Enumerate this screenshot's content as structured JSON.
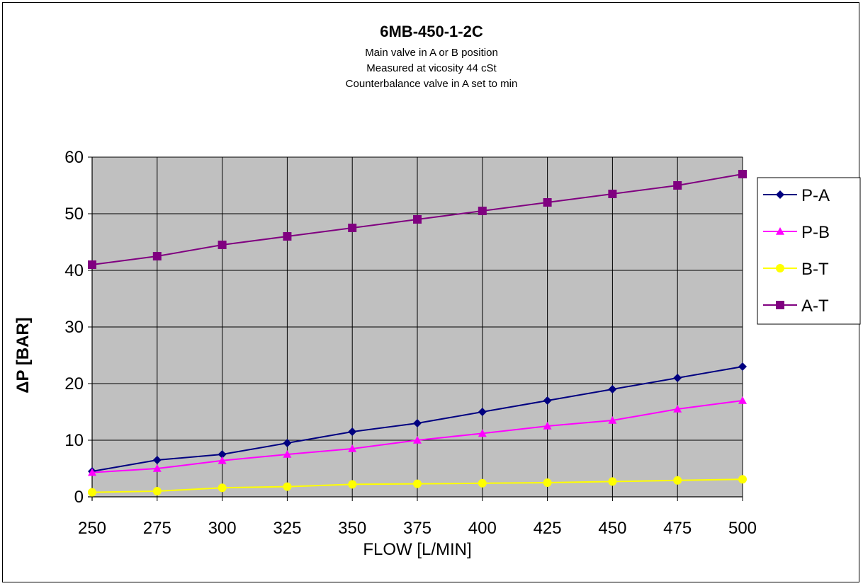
{
  "chart_data": {
    "type": "line",
    "title": "6MB-450-1-2C",
    "subtitle": [
      "Main valve in A or B position",
      "Measured at vicosity 44 cSt",
      "Counterbalance valve in A set to min"
    ],
    "xlabel": "FLOW   [L/MIN]",
    "ylabel": "ΔP [BAR]",
    "x": [
      250,
      275,
      300,
      325,
      350,
      375,
      400,
      425,
      450,
      475,
      500
    ],
    "ylim": [
      0,
      60
    ],
    "yticks": [
      0,
      10,
      20,
      30,
      40,
      50,
      60
    ],
    "grid": true,
    "legend_position": "right",
    "plot_background": "#c0c0c0",
    "series": [
      {
        "name": "P-A",
        "color": "#000080",
        "marker": "diamond",
        "values": [
          4.5,
          6.5,
          7.5,
          9.5,
          11.5,
          13,
          15,
          17,
          19,
          21,
          23
        ]
      },
      {
        "name": "P-B",
        "color": "#ff00ff",
        "marker": "triangle",
        "values": [
          4.3,
          5,
          6.4,
          7.5,
          8.5,
          10,
          11.2,
          12.5,
          13.5,
          15.5,
          17
        ]
      },
      {
        "name": "B-T",
        "color": "#ffff00",
        "marker": "circle",
        "values": [
          0.8,
          1,
          1.6,
          1.8,
          2.2,
          2.3,
          2.4,
          2.5,
          2.7,
          2.9,
          3.1
        ]
      },
      {
        "name": "A-T",
        "color": "#800080",
        "marker": "square",
        "values": [
          41,
          42.5,
          44.5,
          46,
          47.5,
          49,
          50.5,
          52,
          53.5,
          55,
          57
        ]
      }
    ]
  }
}
